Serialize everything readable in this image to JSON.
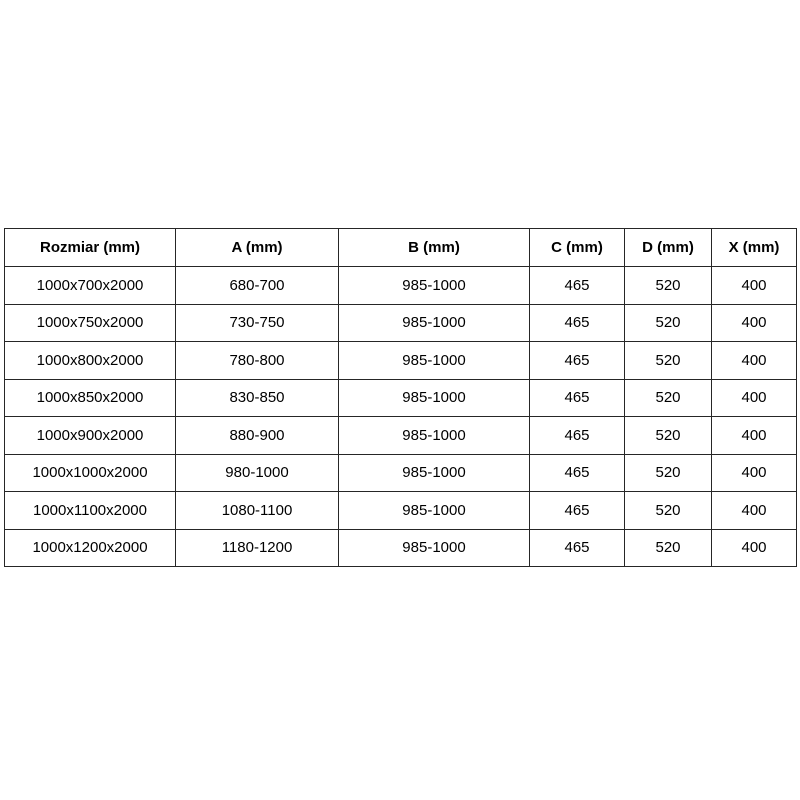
{
  "chart_data": {
    "type": "table",
    "columns": [
      "Rozmiar (mm)",
      "A (mm)",
      "B (mm)",
      "C (mm)",
      "D (mm)",
      "X (mm)"
    ],
    "rows": [
      [
        "1000x700x2000",
        "680-700",
        "985-1000",
        "465",
        "520",
        "400"
      ],
      [
        "1000x750x2000",
        "730-750",
        "985-1000",
        "465",
        "520",
        "400"
      ],
      [
        "1000x800x2000",
        "780-800",
        "985-1000",
        "465",
        "520",
        "400"
      ],
      [
        "1000x850x2000",
        "830-850",
        "985-1000",
        "465",
        "520",
        "400"
      ],
      [
        "1000x900x2000",
        "880-900",
        "985-1000",
        "465",
        "520",
        "400"
      ],
      [
        "1000x1000x2000",
        "980-1000",
        "985-1000",
        "465",
        "520",
        "400"
      ],
      [
        "1000x1100x2000",
        "1080-1100",
        "985-1000",
        "465",
        "520",
        "400"
      ],
      [
        "1000x1200x2000",
        "1180-1200",
        "985-1000",
        "465",
        "520",
        "400"
      ]
    ],
    "colors": {
      "border": "#262626",
      "text": "#000000",
      "background": "#ffffff"
    }
  }
}
